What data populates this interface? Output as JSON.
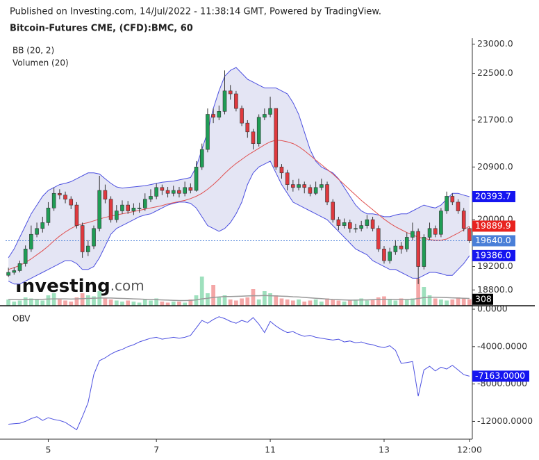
{
  "chart_data": {
    "type": "candlestick",
    "subtitle": "Published on Investing.com, 14/Jul/2022 - 11:38:14 GMT, Powered by TradingView.",
    "title": "Bitcoin-Futures CME, (CFD):BMC, 60",
    "logo": {
      "brand": "Investing",
      "suffix": ".com"
    },
    "up_color": "#1f9d55",
    "down_color": "#e0393e",
    "categories": [
      null,
      null,
      null,
      null,
      null,
      null,
      null,
      "5",
      null,
      null,
      null,
      null,
      null,
      null,
      null,
      null,
      null,
      null,
      null,
      null,
      null,
      null,
      null,
      null,
      null,
      null,
      "7",
      null,
      null,
      null,
      null,
      null,
      null,
      null,
      null,
      null,
      null,
      null,
      null,
      null,
      null,
      null,
      null,
      null,
      null,
      null,
      "11",
      null,
      null,
      null,
      null,
      null,
      null,
      null,
      null,
      null,
      null,
      null,
      null,
      null,
      null,
      null,
      null,
      null,
      null,
      null,
      "13",
      null,
      null,
      null,
      null,
      null,
      null,
      null,
      null,
      null,
      null,
      null,
      null,
      null,
      null,
      "12:00"
    ],
    "open": [
      19050,
      19100,
      19130,
      19250,
      19500,
      19750,
      19850,
      19950,
      20200,
      20450,
      20420,
      20350,
      20250,
      19900,
      19450,
      19550,
      19850,
      20500,
      20350,
      20000,
      20150,
      20250,
      20150,
      20200,
      20200,
      20350,
      20400,
      20550,
      20500,
      20450,
      20500,
      20450,
      20550,
      20500,
      20900,
      21200,
      21800,
      21750,
      21850,
      22200,
      22150,
      21900,
      21650,
      21500,
      21300,
      21750,
      21800,
      21900,
      20900,
      20800,
      20600,
      20550,
      20600,
      20550,
      20450,
      20550,
      20600,
      20300,
      20000,
      19900,
      19950,
      19850,
      19850,
      19900,
      20000,
      19850,
      19500,
      19300,
      19450,
      19550,
      19500,
      19700,
      19800,
      19200,
      19700,
      19850,
      19750,
      20150,
      20400,
      20300,
      20150,
      19850
    ],
    "high": [
      19180,
      19190,
      19300,
      19560,
      19900,
      19950,
      20050,
      20300,
      20550,
      20520,
      20480,
      20400,
      20300,
      19950,
      19650,
      19900,
      20750,
      20600,
      20400,
      20250,
      20330,
      20320,
      20280,
      20290,
      20450,
      20520,
      20620,
      20600,
      20560,
      20580,
      20560,
      20650,
      20620,
      21000,
      21300,
      21900,
      21900,
      21950,
      22550,
      22300,
      22200,
      21950,
      21700,
      21550,
      21800,
      21900,
      22100,
      21900,
      20950,
      20850,
      20680,
      20700,
      20650,
      20600,
      20650,
      20700,
      20650,
      20350,
      20050,
      20020,
      20000,
      19930,
      19980,
      20080,
      20050,
      19900,
      19550,
      19520,
      19650,
      19620,
      19780,
      19950,
      19850,
      19750,
      19950,
      19900,
      20200,
      20480,
      20450,
      20350,
      20200,
      19880
    ],
    "low": [
      19020,
      19060,
      19100,
      19200,
      19450,
      19700,
      19780,
      19900,
      20150,
      20350,
      20280,
      20180,
      19850,
      19350,
      19380,
      19500,
      19800,
      20280,
      19950,
      19950,
      20100,
      20100,
      20080,
      20120,
      20150,
      20300,
      20350,
      20420,
      20380,
      20400,
      20380,
      20400,
      20450,
      20480,
      20850,
      21150,
      21650,
      21700,
      21800,
      22050,
      21850,
      21600,
      21400,
      21200,
      21250,
      21700,
      21750,
      20850,
      20700,
      20500,
      20480,
      20500,
      20450,
      20400,
      20420,
      20500,
      20250,
      19950,
      19820,
      19850,
      19780,
      19780,
      19800,
      19850,
      19800,
      19450,
      19250,
      19250,
      19400,
      19420,
      19450,
      19650,
      18900,
      19150,
      19650,
      19700,
      19700,
      20100,
      20250,
      20100,
      19800,
      19600
    ],
    "close": [
      19100,
      19130,
      19250,
      19500,
      19750,
      19850,
      19950,
      20200,
      20450,
      20420,
      20350,
      20250,
      19900,
      19450,
      19550,
      19850,
      20500,
      20350,
      20000,
      20150,
      20250,
      20150,
      20200,
      20200,
      20350,
      20400,
      20550,
      20500,
      20450,
      20500,
      20450,
      20550,
      20500,
      20900,
      21200,
      21800,
      21750,
      21850,
      22200,
      22150,
      21900,
      21650,
      21500,
      21300,
      21750,
      21800,
      21900,
      20900,
      20800,
      20600,
      20550,
      20600,
      20550,
      20450,
      20550,
      20600,
      20300,
      20000,
      19900,
      19950,
      19850,
      19850,
      19900,
      20000,
      19850,
      19500,
      19300,
      19450,
      19550,
      19500,
      19700,
      19800,
      19200,
      19700,
      19850,
      19750,
      20150,
      20400,
      20300,
      20150,
      19850,
      19640
    ],
    "ylim": [
      18530,
      23100
    ],
    "yticks": [
      {
        "value": 23000,
        "label": "23000.0"
      },
      {
        "value": 22500,
        "label": "22500.0"
      },
      {
        "value": 21700,
        "label": "21700.0"
      },
      {
        "value": 20900,
        "label": "20900.0"
      },
      {
        "value": 20000,
        "label": "20000.0"
      },
      {
        "value": 19200,
        "label": "19200.0"
      },
      {
        "value": 18800,
        "label": "18800.0"
      }
    ],
    "close_color": "#4a7fd8",
    "bollinger": {
      "name": "BB (20, 2)",
      "color": "#4b4fe0",
      "fill": "#e4e5f4",
      "middle_color": "#e05050",
      "upper": [
        19350,
        19500,
        19700,
        19900,
        20100,
        20250,
        20400,
        20500,
        20550,
        20600,
        20620,
        20650,
        20700,
        20750,
        20800,
        20800,
        20780,
        20700,
        20620,
        20560,
        20540,
        20550,
        20560,
        20570,
        20580,
        20600,
        20620,
        20640,
        20650,
        20660,
        20680,
        20700,
        20720,
        20900,
        21200,
        21500,
        21900,
        22200,
        22450,
        22550,
        22600,
        22500,
        22400,
        22350,
        22300,
        22250,
        22250,
        22250,
        22200,
        22150,
        22000,
        21800,
        21500,
        21200,
        21000,
        20900,
        20850,
        20800,
        20700,
        20550,
        20400,
        20250,
        20150,
        20100,
        20100,
        20080,
        20050,
        20050,
        20080,
        20100,
        20100,
        20150,
        20200,
        20250,
        20220,
        20200,
        20250,
        20350,
        20450,
        20450,
        20420,
        20393.7
      ],
      "middle": [
        19150,
        19180,
        19220,
        19270,
        19330,
        19400,
        19470,
        19550,
        19640,
        19720,
        19790,
        19850,
        19900,
        19930,
        19950,
        19980,
        20010,
        20040,
        20060,
        20080,
        20100,
        20120,
        20140,
        20160,
        20180,
        20200,
        20220,
        20240,
        20270,
        20290,
        20310,
        20330,
        20360,
        20400,
        20450,
        20520,
        20600,
        20690,
        20790,
        20880,
        20960,
        21030,
        21100,
        21160,
        21220,
        21280,
        21330,
        21360,
        21350,
        21330,
        21300,
        21250,
        21180,
        21100,
        21020,
        20940,
        20860,
        20780,
        20690,
        20600,
        20510,
        20420,
        20330,
        20250,
        20170,
        20090,
        20010,
        19940,
        19880,
        19830,
        19780,
        19740,
        19700,
        19680,
        19660,
        19650,
        19650,
        19670,
        19720,
        19770,
        19830,
        19889.9
      ],
      "lower": [
        18950,
        18900,
        18900,
        18950,
        19000,
        19050,
        19100,
        19150,
        19200,
        19250,
        19300,
        19300,
        19250,
        19150,
        19150,
        19200,
        19350,
        19550,
        19750,
        19850,
        19900,
        19950,
        20000,
        20050,
        20080,
        20100,
        20150,
        20200,
        20250,
        20280,
        20300,
        20300,
        20280,
        20200,
        20050,
        19900,
        19850,
        19800,
        19850,
        19950,
        20100,
        20300,
        20600,
        20800,
        20900,
        20950,
        21000,
        20800,
        20600,
        20450,
        20300,
        20250,
        20200,
        20150,
        20100,
        20050,
        20000,
        19900,
        19800,
        19700,
        19600,
        19500,
        19450,
        19400,
        19300,
        19250,
        19200,
        19150,
        19150,
        19100,
        19050,
        19000,
        19000,
        19050,
        19100,
        19100,
        19080,
        19050,
        19050,
        19150,
        19250,
        19386
      ]
    },
    "volume": {
      "name": "Volumen (20)",
      "up_color": "#9ee0bd",
      "down_color": "#f4a6a6",
      "ma_color": "#999999",
      "ylim": [
        0,
        1500
      ],
      "values": [
        300,
        200,
        250,
        400,
        350,
        300,
        250,
        500,
        600,
        300,
        250,
        200,
        400,
        600,
        500,
        450,
        700,
        350,
        300,
        250,
        200,
        250,
        200,
        150,
        300,
        250,
        350,
        200,
        150,
        200,
        200,
        150,
        300,
        500,
        1400,
        600,
        1000,
        400,
        500,
        300,
        250,
        350,
        400,
        800,
        300,
        700,
        600,
        500,
        350,
        300,
        250,
        300,
        200,
        250,
        300,
        200,
        350,
        300,
        250,
        200,
        250,
        300,
        350,
        250,
        300,
        400,
        450,
        300,
        250,
        350,
        300,
        350,
        1300,
        900,
        500,
        350,
        300,
        250,
        300,
        400,
        350,
        308
      ],
      "ma": [
        300,
        290,
        290,
        300,
        310,
        310,
        310,
        320,
        330,
        330,
        330,
        320,
        330,
        340,
        350,
        360,
        370,
        370,
        370,
        360,
        350,
        340,
        330,
        320,
        310,
        300,
        290,
        280,
        270,
        260,
        250,
        250,
        260,
        280,
        330,
        360,
        400,
        420,
        440,
        440,
        450,
        460,
        470,
        480,
        480,
        490,
        480,
        470,
        460,
        450,
        430,
        420,
        400,
        380,
        360,
        340,
        320,
        300,
        290,
        280,
        270,
        270,
        280,
        280,
        290,
        300,
        310,
        310,
        300,
        300,
        300,
        310,
        350,
        390,
        410,
        410,
        400,
        390,
        380,
        370,
        360,
        350
      ]
    },
    "obv": {
      "name": "OBV",
      "color": "#4b4fe0",
      "ylim": [
        -13900,
        0
      ],
      "yticks": [
        {
          "value": 0,
          "label": "0.0000"
        },
        {
          "value": -4000,
          "label": "-4000.0000"
        },
        {
          "value": -8000,
          "label": "-8000.0000"
        },
        {
          "value": -12000,
          "label": "-12000.0000"
        }
      ],
      "values": [
        -12300,
        -12250,
        -12200,
        -12000,
        -11700,
        -11500,
        -11900,
        -11600,
        -11800,
        -11900,
        -12100,
        -12500,
        -12900,
        -11500,
        -10000,
        -7000,
        -5500,
        -5200,
        -4800,
        -4500,
        -4300,
        -4000,
        -3800,
        -3500,
        -3300,
        -3100,
        -3000,
        -3200,
        -3100,
        -3000,
        -3100,
        -3000,
        -2800,
        -2000,
        -1200,
        -1500,
        -1100,
        -800,
        -1000,
        -1300,
        -1500,
        -1200,
        -1400,
        -900,
        -1600,
        -2500,
        -1300,
        -1800,
        -2200,
        -2500,
        -2400,
        -2700,
        -2900,
        -2800,
        -3000,
        -3100,
        -3200,
        -3300,
        -3200,
        -3500,
        -3400,
        -3600,
        -3500,
        -3700,
        -3800,
        -4000,
        -4100,
        -3900,
        -4400,
        -5800,
        -5700,
        -5600,
        -9300,
        -6500,
        -6100,
        -6600,
        -6200,
        -6400,
        -6000,
        -6500,
        -7000,
        -7163
      ]
    },
    "last_labels": {
      "upper": "20393.7",
      "middle": "19889.9",
      "close": "19640.0",
      "lower": "19386.0",
      "volume": "308",
      "obv": "-7163.0000"
    },
    "last_label_colors": {
      "upper": "#1515f0",
      "middle": "#e8231f",
      "close": "#4a7fd8",
      "lower": "#1515f0",
      "volume": "#000000",
      "obv": "#1515f0"
    }
  }
}
